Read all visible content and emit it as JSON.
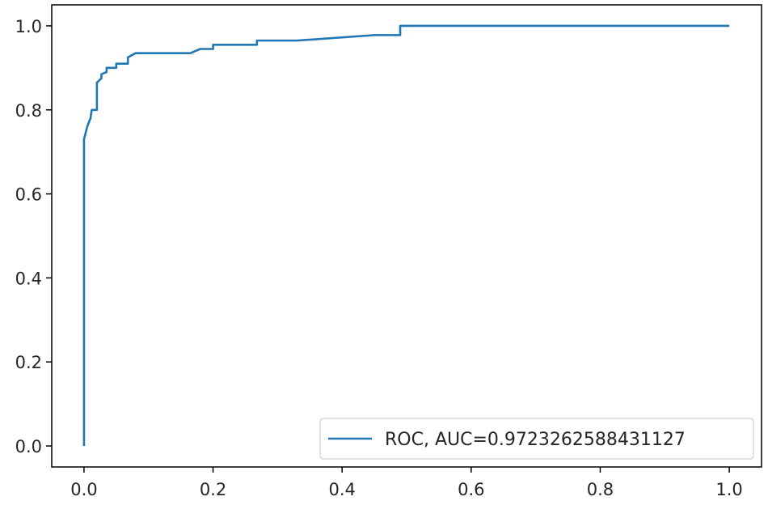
{
  "chart_data": {
    "type": "line",
    "title": "",
    "xlabel": "",
    "ylabel": "",
    "xlim": [
      -0.05,
      1.05
    ],
    "ylim": [
      -0.05,
      1.05
    ],
    "grid": false,
    "legend_position": "lower-right",
    "x_ticks": [
      {
        "value": 0.0,
        "label": "0.0"
      },
      {
        "value": 0.2,
        "label": "0.2"
      },
      {
        "value": 0.4,
        "label": "0.4"
      },
      {
        "value": 0.6,
        "label": "0.6"
      },
      {
        "value": 0.8,
        "label": "0.8"
      },
      {
        "value": 1.0,
        "label": "1.0"
      }
    ],
    "y_ticks": [
      {
        "value": 0.0,
        "label": "0.0"
      },
      {
        "value": 0.2,
        "label": "0.2"
      },
      {
        "value": 0.4,
        "label": "0.4"
      },
      {
        "value": 0.6,
        "label": "0.6"
      },
      {
        "value": 0.8,
        "label": "0.8"
      },
      {
        "value": 1.0,
        "label": "1.0"
      }
    ],
    "series": [
      {
        "name": "ROC, AUC=0.9723262588431127",
        "color": "#1f77b4",
        "points": [
          [
            0.0,
            0.0
          ],
          [
            0.0,
            0.73
          ],
          [
            0.005,
            0.76
          ],
          [
            0.01,
            0.78
          ],
          [
            0.012,
            0.8
          ],
          [
            0.02,
            0.8
          ],
          [
            0.02,
            0.865
          ],
          [
            0.027,
            0.875
          ],
          [
            0.027,
            0.885
          ],
          [
            0.035,
            0.89
          ],
          [
            0.035,
            0.9
          ],
          [
            0.05,
            0.9
          ],
          [
            0.05,
            0.91
          ],
          [
            0.068,
            0.91
          ],
          [
            0.068,
            0.925
          ],
          [
            0.08,
            0.935
          ],
          [
            0.165,
            0.935
          ],
          [
            0.18,
            0.945
          ],
          [
            0.2,
            0.945
          ],
          [
            0.2,
            0.955
          ],
          [
            0.268,
            0.955
          ],
          [
            0.268,
            0.965
          ],
          [
            0.33,
            0.965
          ],
          [
            0.45,
            0.978
          ],
          [
            0.49,
            0.978
          ],
          [
            0.49,
            1.0
          ],
          [
            1.0,
            1.0
          ]
        ]
      }
    ]
  }
}
